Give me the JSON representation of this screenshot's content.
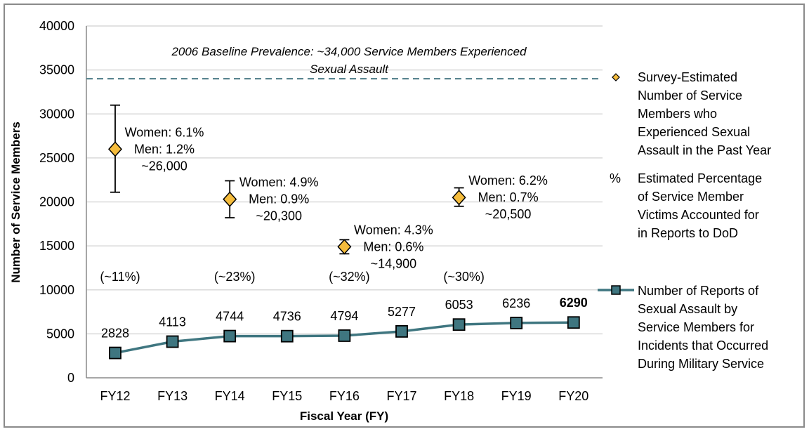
{
  "chart_data": {
    "type": "line",
    "title": "",
    "xlabel": "Fiscal Year (FY)",
    "ylabel": "Number of Service Members",
    "ylim": [
      0,
      40000
    ],
    "yticks": [
      0,
      5000,
      10000,
      15000,
      20000,
      25000,
      30000,
      35000,
      40000
    ],
    "grid": true,
    "categories": [
      "FY12",
      "FY13",
      "FY14",
      "FY15",
      "FY16",
      "FY17",
      "FY18",
      "FY19",
      "FY20"
    ],
    "baseline": {
      "value": 34000,
      "label_line1": "2006 Baseline Prevalence: ~34,000 Service Members Experienced",
      "label_line2": "Sexual Assault",
      "style": "dashed"
    },
    "series": [
      {
        "name": "Number of Reports of Sexual Assault by Service Members for Incidents that Occurred During Military Service",
        "type": "line",
        "marker": "square",
        "values": [
          2828,
          4113,
          4744,
          4736,
          4794,
          5277,
          6053,
          6236,
          6290
        ],
        "labels": [
          "2828",
          "4113",
          "4744",
          "4736",
          "4794",
          "5277",
          "6053",
          "6236",
          "6290"
        ],
        "bold_last_label": true
      },
      {
        "name": "Survey-Estimated Number of Service Members who Experienced Sexual Assault in the Past Year",
        "type": "scatter",
        "marker": "diamond",
        "points": [
          {
            "category": "FY12",
            "value": 26000,
            "err_low": 21100,
            "err_high": 31000,
            "women": "Women: 6.1%",
            "men": "Men: 1.2%",
            "approx": "~26,000",
            "pct": "(~11%)"
          },
          {
            "category": "FY14",
            "value": 20300,
            "err_low": 18200,
            "err_high": 22400,
            "women": "Women: 4.9%",
            "men": "Men: 0.9%",
            "approx": "~20,300",
            "pct": "(~23%)"
          },
          {
            "category": "FY16",
            "value": 14900,
            "err_low": 14100,
            "err_high": 15700,
            "women": "Women: 4.3%",
            "men": "Men: 0.6%",
            "approx": "~14,900",
            "pct": "(~32%)"
          },
          {
            "category": "FY18",
            "value": 20500,
            "err_low": 19500,
            "err_high": 21600,
            "women": "Women: 6.2%",
            "men": "Men: 0.7%",
            "approx": "~20,500",
            "pct": "(~30%)"
          }
        ]
      }
    ],
    "legend": {
      "placement": "right",
      "entries": [
        {
          "symbol": "diamond",
          "lines": [
            "Survey-Estimated",
            "Number of Service",
            "Members who",
            "Experienced Sexual",
            "Assault in the Past Year"
          ]
        },
        {
          "symbol": "%",
          "lines": [
            "Estimated Percentage",
            "of Service Member",
            "Victims Accounted for",
            "in Reports to DoD"
          ]
        },
        {
          "symbol": "line-square",
          "lines": [
            "Number of Reports of",
            "Sexual Assault by",
            "Service Members for",
            "Incidents that Occurred",
            "During Military Service"
          ]
        }
      ]
    },
    "colors": {
      "line": "#3f7680",
      "marker_fill": "#3f7680",
      "diamond_fill": "#f5bc3c",
      "baseline": "#4a7a85",
      "grid": "#d9d9d9",
      "axis": "#8a8a8a"
    }
  }
}
